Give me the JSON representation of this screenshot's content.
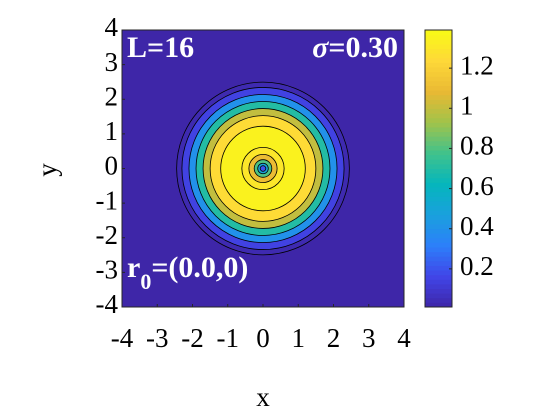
{
  "chart_data": {
    "type": "contour",
    "xlabel": "x",
    "ylabel": "y",
    "xlim": [
      -4,
      4
    ],
    "ylim": [
      -4,
      4
    ],
    "xticks": [
      -4,
      -3,
      -2,
      -1,
      0,
      1,
      2,
      3,
      4
    ],
    "yticks": [
      -4,
      -3,
      -2,
      -1,
      0,
      1,
      2,
      3,
      4
    ],
    "clim": [
      0.01,
      1.39
    ],
    "cticks": [
      0.2,
      0.4,
      0.6,
      0.8,
      1,
      1.2
    ],
    "colormap": [
      "#3e26a8",
      "#4145e8",
      "#2c7ffa",
      "#1aa0dd",
      "#05b6bc",
      "#40c28c",
      "#a1c34a",
      "#e9b933",
      "#fed839",
      "#f9fb15"
    ],
    "contour_color": "#000000",
    "profile": {
      "r": [
        2.45,
        2.3,
        2.1,
        1.9,
        1.7,
        1.5,
        1.2,
        0.6,
        0.4,
        0.25,
        0.15,
        0.08
      ],
      "values": [
        0.03,
        0.15,
        0.4,
        0.7,
        1.0,
        1.25,
        1.35,
        1.3,
        1.1,
        0.8,
        0.5,
        0.2
      ]
    },
    "annotations": [
      {
        "text": "L=16"
      },
      {
        "italic": "σ",
        "text": "=0.30"
      },
      {
        "text": "r",
        "subscript": "0",
        "rest": "=(0.0,0)"
      }
    ]
  }
}
